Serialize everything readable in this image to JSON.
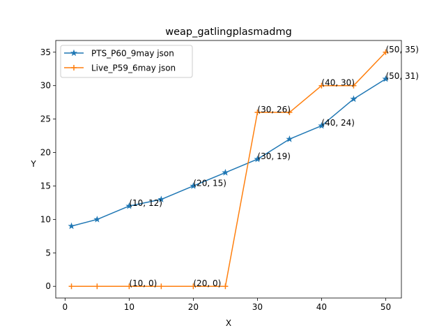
{
  "chart_data": {
    "type": "line",
    "title": "weap_gatlingplasmadmg",
    "xlabel": "X",
    "ylabel": "Y",
    "xlim": [
      -1.45,
      52.45
    ],
    "ylim": [
      -1.75,
      36.75
    ],
    "xticks": [
      0,
      10,
      20,
      30,
      40,
      50
    ],
    "yticks": [
      0,
      5,
      10,
      15,
      20,
      25,
      30,
      35
    ],
    "grid": false,
    "legend_position": "top-left",
    "series": [
      {
        "name": "PTS_P60_9may json",
        "color": "#1f77b4",
        "marker": "star",
        "x": [
          1,
          5,
          10,
          15,
          20,
          25,
          30,
          35,
          40,
          45,
          50
        ],
        "y": [
          9,
          10,
          12,
          13,
          15,
          17,
          19,
          22,
          24,
          28,
          31
        ]
      },
      {
        "name": "Live_P59_6may json",
        "color": "#ff7f0e",
        "marker": "plus",
        "x": [
          1,
          5,
          10,
          15,
          20,
          25,
          30,
          35,
          40,
          45,
          50
        ],
        "y": [
          0,
          0,
          0,
          0,
          0,
          0,
          26,
          26,
          30,
          30,
          35
        ]
      }
    ],
    "annotations": [
      {
        "text": "(10, 12)",
        "x": 10,
        "y": 12
      },
      {
        "text": "(20, 15)",
        "x": 20,
        "y": 15
      },
      {
        "text": "(30, 19)",
        "x": 30,
        "y": 19
      },
      {
        "text": "(40, 24)",
        "x": 40,
        "y": 24
      },
      {
        "text": "(50, 31)",
        "x": 50,
        "y": 31
      },
      {
        "text": "(10, 0)",
        "x": 10,
        "y": 0
      },
      {
        "text": "(20, 0)",
        "x": 20,
        "y": 0
      },
      {
        "text": "(30, 26)",
        "x": 30,
        "y": 26
      },
      {
        "text": "(40, 30)",
        "x": 40,
        "y": 30
      },
      {
        "text": "(50, 35)",
        "x": 50,
        "y": 35
      }
    ]
  }
}
